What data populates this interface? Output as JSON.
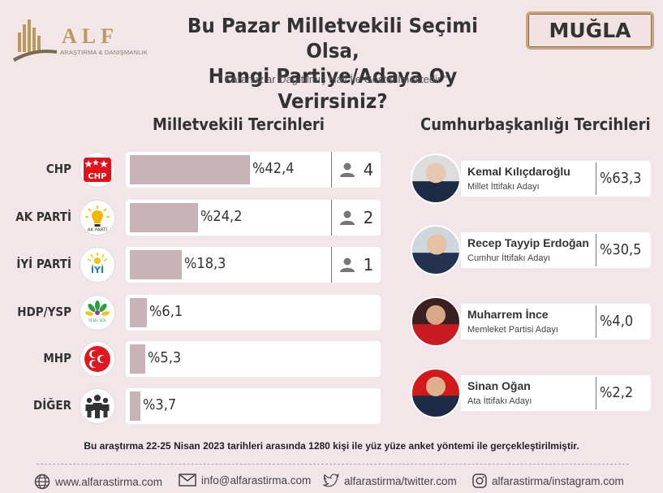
{
  "brand": {
    "name": "ALF",
    "tagline": "ARAŞTIRMA & DANIŞMANLIK"
  },
  "header": {
    "title_line1": "Bu Pazar Milletvekili Seçimi Olsa,",
    "title_line2": "Hangi Partiye/Adaya Oy Verirsiniz?",
    "subtitle": "\" Kararsızlar Dağıtılmış Hali İle Gösterilmektedir \"",
    "region": "MUĞLA"
  },
  "chart_data": [
    {
      "type": "bar",
      "title": "Milletvekili Tercihleri",
      "categories": [
        "CHP",
        "AK PARTİ",
        "İYİ PARTİ",
        "HDP/YSP",
        "MHP",
        "DİĞER"
      ],
      "values": [
        42.4,
        24.2,
        18.3,
        6.1,
        5.3,
        3.7
      ],
      "value_labels": [
        "%42,4",
        "%24,2",
        "%18,3",
        "%6,1",
        "%5,3",
        "%3,7"
      ],
      "seats": [
        4,
        2,
        1,
        null,
        null,
        null
      ],
      "seat_labels": [
        "4",
        "2",
        "1",
        "",
        "",
        ""
      ],
      "bar_color": "#c8b4b6"
    },
    {
      "type": "table",
      "title": "Cumhurbaşkanlığı Tercihleri",
      "rows": [
        {
          "name": "Kemal Kılıçdaroğlu",
          "alliance": "Millet İttifakı Adayı",
          "value": 63.3,
          "label": "%63,3"
        },
        {
          "name": "Recep Tayyip Erdoğan",
          "alliance": "Cumhur İttifakı Adayı",
          "value": 30.5,
          "label": "%30,5"
        },
        {
          "name": "Muharrem İnce",
          "alliance": "Memleket Partisi Adayı",
          "value": 4.0,
          "label": "%4,0"
        },
        {
          "name": "Sinan Oğan",
          "alliance": "Ata İttifakı Adayı",
          "value": 2.2,
          "label": "%2,2"
        }
      ]
    }
  ],
  "footer": {
    "note": "Bu araştırma 22-25 Nisan 2023 tarihleri arasında 1280 kişi ile yüz yüze anket yöntemi ile gerçekleştirilmiştir.",
    "website": "www.alfarastirma.com",
    "email": "info@alfarastirma.com",
    "twitter": "alfarastirma/twitter.com",
    "instagram": "alfarastirma/instagram.com"
  },
  "colors": {
    "background": "#f3e6e8",
    "bar": "#c8b4b6",
    "chp_red": "#e3101a",
    "akp_yellow": "#f5b800",
    "iyi_blue": "#1e7ec8",
    "mhp_red": "#e2161e",
    "gold": "#b89a5f"
  },
  "icons": [
    "globe-icon",
    "envelope-icon",
    "twitter-icon",
    "instagram-icon",
    "person-icon",
    "people-icon"
  ]
}
